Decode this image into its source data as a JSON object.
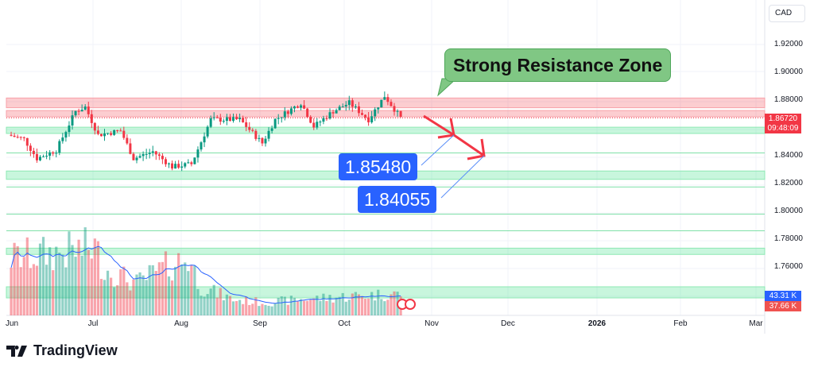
{
  "currency_label": "CAD",
  "price_axis": [
    "1.92000",
    "1.90000",
    "1.88000",
    "1.84000",
    "1.82000",
    "1.80000",
    "1.78000",
    "1.76000"
  ],
  "current_price": "1.86720",
  "countdown": "09:48:09",
  "volume_labels": {
    "buy": "43.31 K",
    "sell": "37.66 K"
  },
  "date_axis": [
    "Jun",
    "Jul",
    "Aug",
    "Sep",
    "Oct",
    "Nov",
    "Dec",
    "2026",
    "Feb",
    "Mar"
  ],
  "annotations": {
    "callout": "Strong Resistance Zone",
    "target1": "1.85480",
    "target2": "1.84055"
  },
  "brand": "TradingView",
  "colors": {
    "up": "#089981",
    "down": "#f23645",
    "resist": "#f7a1a8",
    "support": "#8ee8b4",
    "tag": "#2962ff",
    "callout": "#80c784"
  },
  "chart_data": {
    "type": "candlestick",
    "ylim": [
      1.745,
      1.93
    ],
    "price_waypoints": [
      [
        0,
        1.855
      ],
      [
        5,
        1.852
      ],
      [
        9,
        1.838
      ],
      [
        15,
        1.844
      ],
      [
        21,
        1.872
      ],
      [
        24,
        1.875
      ],
      [
        28,
        1.855
      ],
      [
        35,
        1.858
      ],
      [
        39,
        1.838
      ],
      [
        45,
        1.843
      ],
      [
        51,
        1.832
      ],
      [
        57,
        1.834
      ],
      [
        63,
        1.866
      ],
      [
        72,
        1.866
      ],
      [
        79,
        1.849
      ],
      [
        83,
        1.866
      ],
      [
        91,
        1.878
      ],
      [
        95,
        1.861
      ],
      [
        101,
        1.872
      ],
      [
        106,
        1.878
      ],
      [
        112,
        1.866
      ],
      [
        117,
        1.883
      ],
      [
        122,
        1.8672
      ]
    ],
    "volume_waypoints": [
      [
        0,
        80
      ],
      [
        10,
        85
      ],
      [
        20,
        90
      ],
      [
        27,
        95
      ],
      [
        30,
        65
      ],
      [
        40,
        45
      ],
      [
        50,
        70
      ],
      [
        56,
        80
      ],
      [
        60,
        40
      ],
      [
        70,
        22
      ],
      [
        80,
        18
      ],
      [
        90,
        22
      ],
      [
        100,
        25
      ],
      [
        110,
        28
      ],
      [
        122,
        30
      ]
    ],
    "resistance_zones": [
      [
        1.8745,
        1.8815
      ],
      [
        1.868,
        1.8725
      ]
    ],
    "support_zones": [
      [
        1.856,
        1.8605
      ],
      [
        1.823,
        1.829
      ],
      [
        1.769,
        1.7735
      ]
    ],
    "support_lines": [
      1.842,
      1.8175,
      1.798,
      1.786
    ],
    "targets": [
      1.8548,
      1.84055
    ]
  }
}
